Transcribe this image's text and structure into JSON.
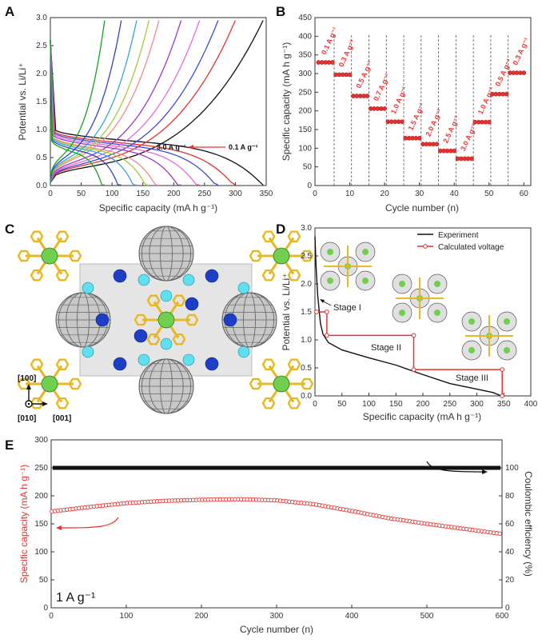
{
  "panels": {
    "a": "A",
    "b": "B",
    "c": "C",
    "d": "D",
    "e": "E"
  },
  "colors": {
    "red": "#e3322f",
    "black": "#111111"
  },
  "chart_data": [
    {
      "id": "A",
      "type": "line",
      "xlabel": "Specific capacity (mA h g⁻¹)",
      "ylabel": "Potential vs. Li/Li⁺",
      "xlim": [
        0,
        350
      ],
      "ylim": [
        0,
        3.0
      ],
      "xticks": [
        "0",
        "50",
        "100",
        "150",
        "200",
        "250",
        "300",
        "350"
      ],
      "yticks": [
        "0.0",
        "0.5",
        "1.0",
        "1.5",
        "2.0",
        "2.5",
        "3.0"
      ],
      "annotation": {
        "from": "3.0 A g⁻¹",
        "to": "0.1 A g⁻¹"
      },
      "series": [
        {
          "name": "0.1 A g-1",
          "color": "#111111",
          "capacity": 345,
          "charge_end": 345
        },
        {
          "name": "0.3 A g-1",
          "color": "#e3322f",
          "capacity": 300,
          "charge_end": 300
        },
        {
          "name": "0.5 A g-1",
          "color": "#3b4bd8",
          "capacity": 272,
          "charge_end": 272
        },
        {
          "name": "0.7 A g-1",
          "color": "#e86bd7",
          "capacity": 242,
          "charge_end": 242
        },
        {
          "name": "1.0 A g-1",
          "color": "#9b3bc6",
          "capacity": 212,
          "charge_end": 212
        },
        {
          "name": "1.5 A g-1",
          "color": "#f08a8a",
          "capacity": 176,
          "charge_end": 176
        },
        {
          "name": "2.0 A g-1",
          "color": "#a4c93a",
          "capacity": 160,
          "charge_end": 160
        },
        {
          "name": "2.5 A g-1",
          "color": "#37a3d8",
          "capacity": 140,
          "charge_end": 140
        },
        {
          "name": "3.0 A g-1 a",
          "color": "#3442c8",
          "capacity": 115,
          "charge_end": 115
        },
        {
          "name": "3.0 A g-1 b",
          "color": "#12a51e",
          "capacity": 88,
          "charge_end": 88
        }
      ]
    },
    {
      "id": "B",
      "type": "scatter",
      "xlabel": "Cycle number (n)",
      "ylabel": "Specific capacity (mA h g⁻¹)",
      "xlim": [
        0,
        62
      ],
      "ylim": [
        0,
        450
      ],
      "xticks": [
        "0",
        "10",
        "20",
        "30",
        "40",
        "50",
        "60"
      ],
      "yticks": [
        "0",
        "50",
        "100",
        "150",
        "200",
        "250",
        "300",
        "350",
        "400",
        "450"
      ],
      "segments": [
        {
          "label": "0.1 A g⁻¹",
          "start": 1,
          "end": 5,
          "value": 330
        },
        {
          "label": "0.3 A g⁻¹",
          "start": 6,
          "end": 10,
          "value": 297
        },
        {
          "label": "0.5 A g⁻¹",
          "start": 11,
          "end": 15,
          "value": 240
        },
        {
          "label": "0.7 A g⁻¹",
          "start": 16,
          "end": 20,
          "value": 206
        },
        {
          "label": "1.0 A g⁻¹",
          "start": 21,
          "end": 25,
          "value": 171
        },
        {
          "label": "1.5 A g⁻¹",
          "start": 26,
          "end": 30,
          "value": 127
        },
        {
          "label": "2.0 A g⁻¹",
          "start": 31,
          "end": 35,
          "value": 111
        },
        {
          "label": "2.5 A g⁻¹",
          "start": 36,
          "end": 40,
          "value": 93
        },
        {
          "label": "3.0 A g⁻¹",
          "start": 41,
          "end": 45,
          "value": 72
        },
        {
          "label": "1.0 A g⁻¹",
          "start": 46,
          "end": 50,
          "value": 170
        },
        {
          "label": "0.5 A g⁻¹",
          "start": 51,
          "end": 55,
          "value": 245
        },
        {
          "label": "0.3 A g⁻¹",
          "start": 56,
          "end": 60,
          "value": 302
        }
      ]
    },
    {
      "id": "D",
      "type": "line",
      "xlabel": "Specific capacity (mA h g⁻¹)",
      "ylabel": "Potential vs. Li/Li⁺",
      "xlim": [
        0,
        400
      ],
      "ylim": [
        0,
        3.0
      ],
      "xticks": [
        "0",
        "50",
        "100",
        "150",
        "200",
        "250",
        "300",
        "350",
        "400"
      ],
      "yticks": [
        "0.0",
        "0.5",
        "1.0",
        "1.5",
        "2.0",
        "2.5",
        "3.0"
      ],
      "legend": [
        "Experiment",
        "Calculated voltage"
      ],
      "stages": [
        "Stage I",
        "Stage II",
        "Stage III"
      ],
      "experiment": [
        [
          0,
          2.85
        ],
        [
          2,
          2.3
        ],
        [
          5,
          1.8
        ],
        [
          10,
          1.3
        ],
        [
          15,
          1.1
        ],
        [
          25,
          0.95
        ],
        [
          50,
          0.82
        ],
        [
          100,
          0.68
        ],
        [
          150,
          0.55
        ],
        [
          200,
          0.38
        ],
        [
          250,
          0.22
        ],
        [
          300,
          0.12
        ],
        [
          330,
          0.06
        ],
        [
          345,
          0.0
        ]
      ],
      "calculated": [
        [
          0,
          1.5
        ],
        [
          22,
          1.5
        ],
        [
          22,
          1.08
        ],
        [
          183,
          1.08
        ],
        [
          183,
          0.47
        ],
        [
          347,
          0.47
        ],
        [
          347,
          0.0
        ]
      ]
    },
    {
      "id": "E",
      "type": "scatter",
      "xlabel": "Cycle number (n)",
      "ylabel": "Specific capacity (mA h g⁻¹)",
      "ylabel_right": "Coulombic efficiency (%)",
      "xlim": [
        0,
        600
      ],
      "ylim": [
        0,
        300
      ],
      "ylim_right": [
        0,
        120
      ],
      "xticks": [
        "0",
        "100",
        "200",
        "300",
        "400",
        "500",
        "600"
      ],
      "yticks": [
        "0",
        "50",
        "100",
        "150",
        "200",
        "250",
        "300"
      ],
      "yticks_right": [
        "0",
        "20",
        "40",
        "60",
        "80",
        "100"
      ],
      "rate_label": "1 A g⁻¹",
      "capacity": [
        [
          0,
          172
        ],
        [
          50,
          180
        ],
        [
          100,
          187
        ],
        [
          150,
          191
        ],
        [
          200,
          193
        ],
        [
          250,
          194
        ],
        [
          300,
          192
        ],
        [
          350,
          185
        ],
        [
          400,
          173
        ],
        [
          450,
          160
        ],
        [
          500,
          150
        ],
        [
          550,
          141
        ],
        [
          600,
          132
        ]
      ],
      "efficiency": 100
    }
  ],
  "crystal": {
    "axis_100": "[100]",
    "axis_010": "[010]",
    "axis_001": "[001]"
  }
}
